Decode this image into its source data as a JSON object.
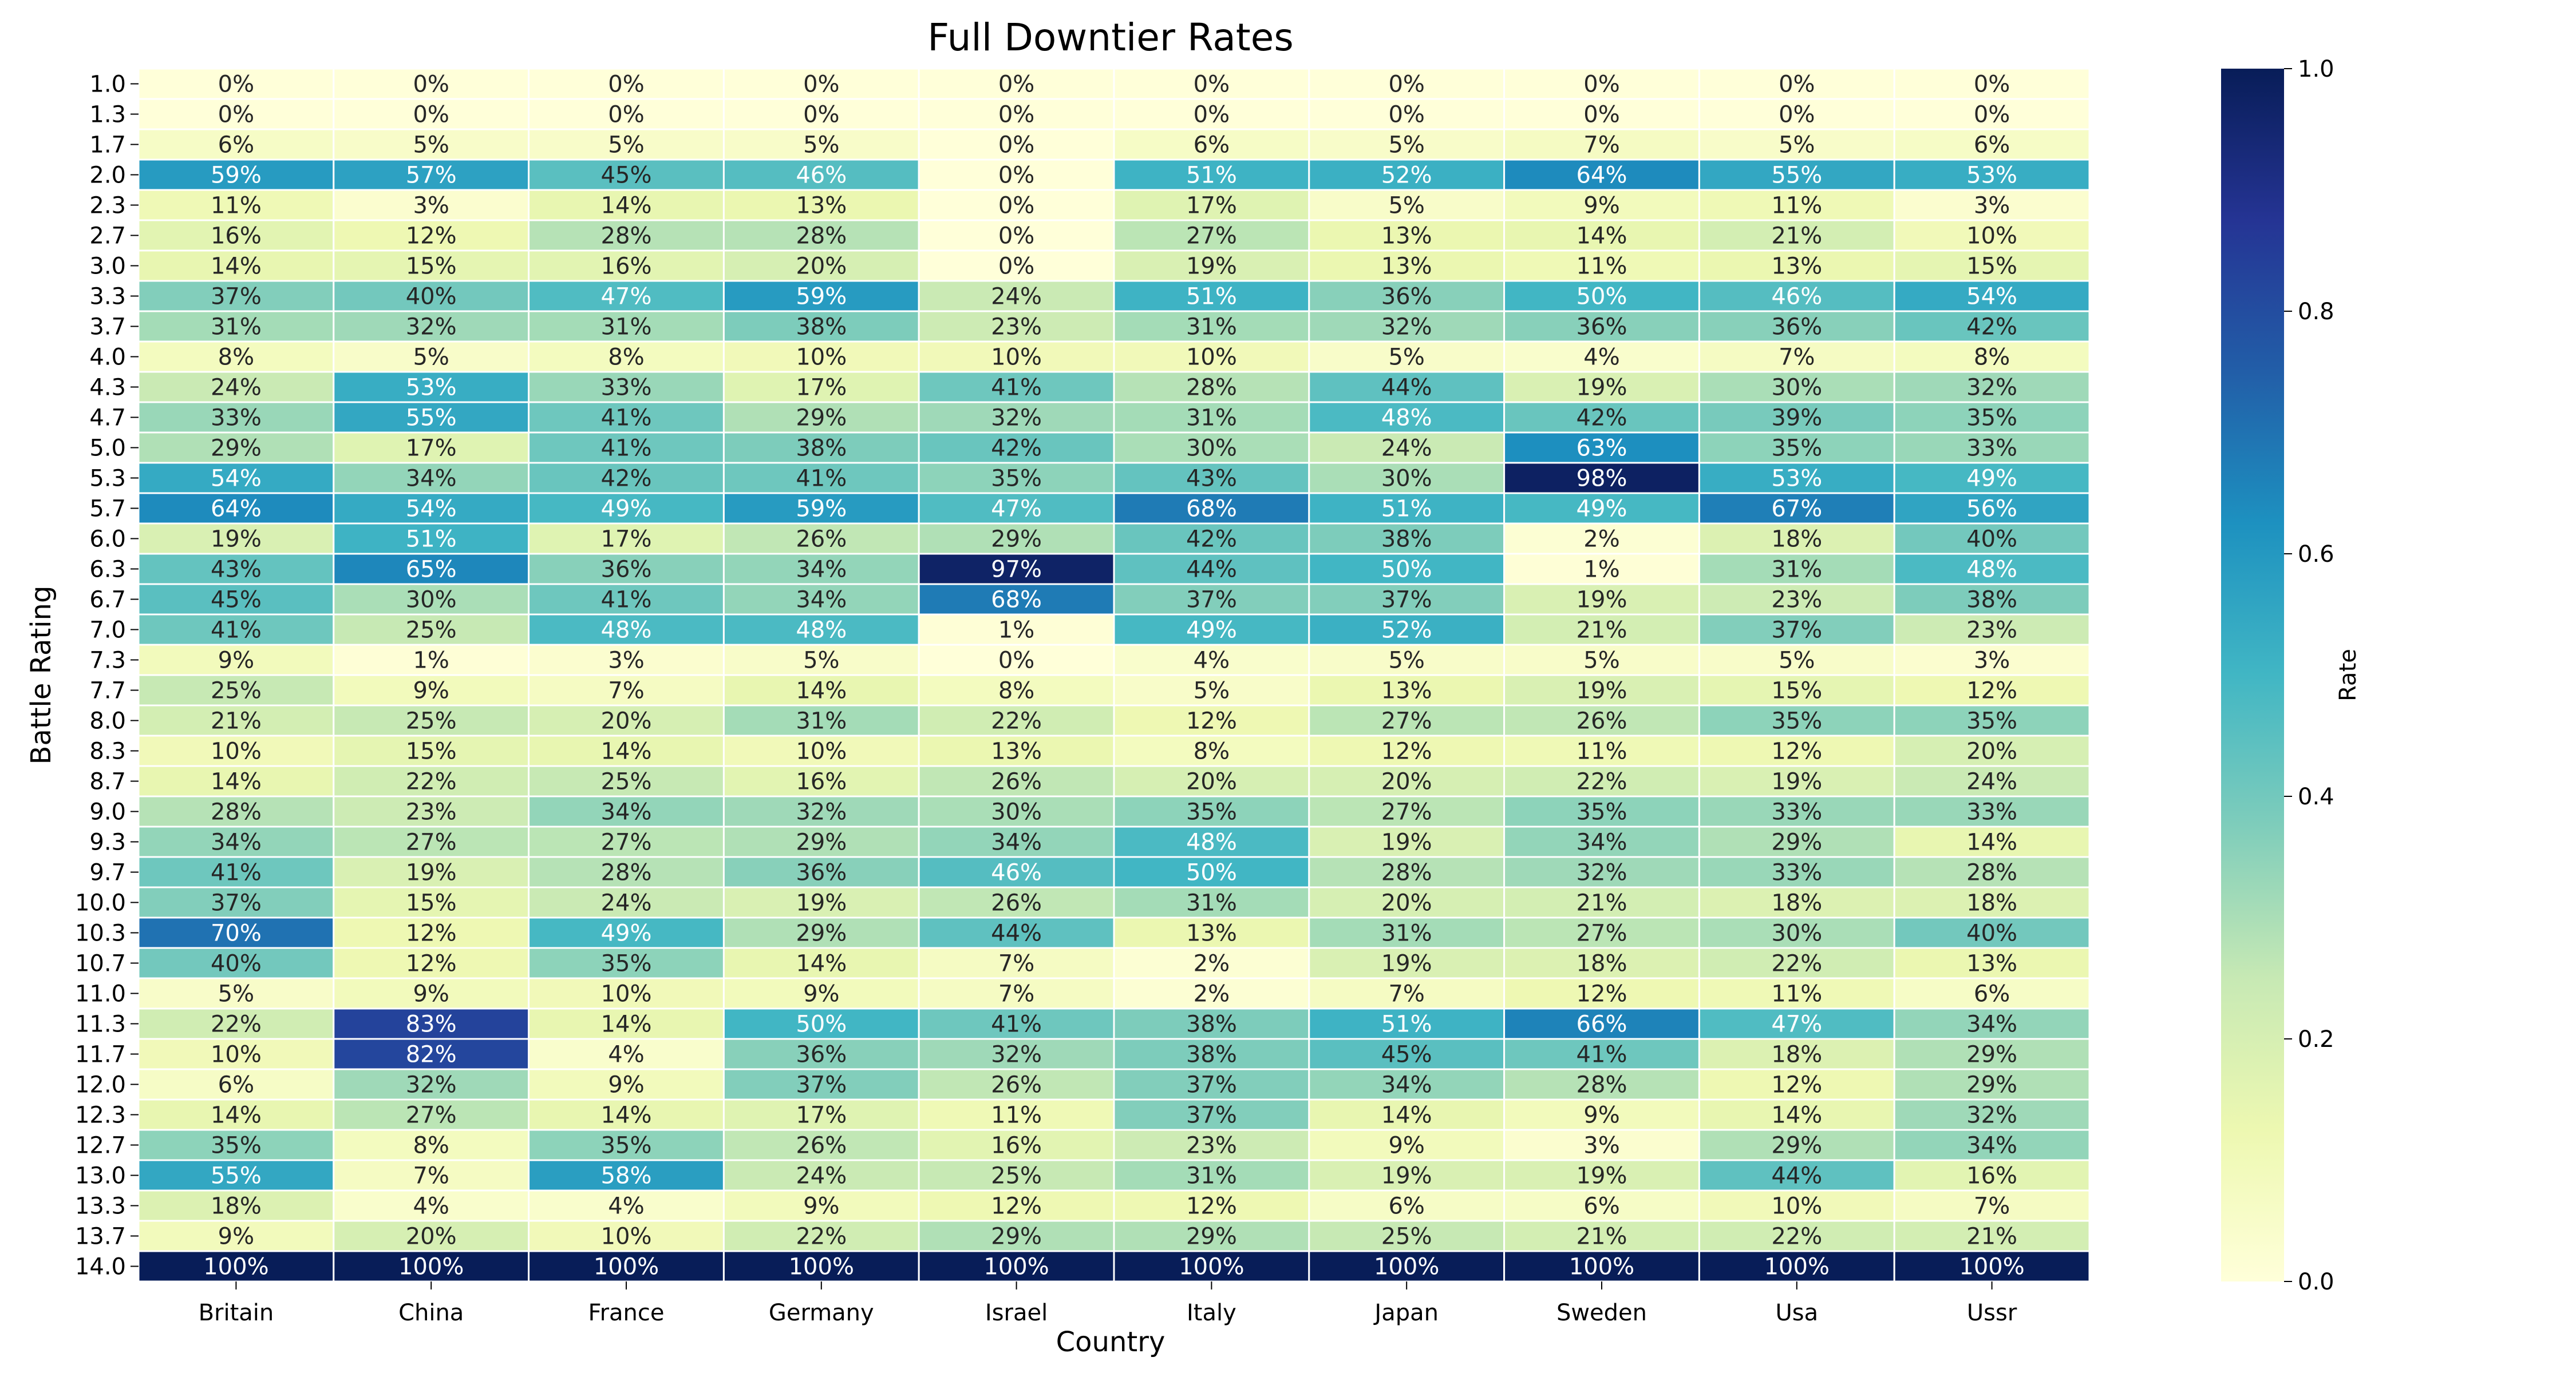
{
  "chart_data": {
    "type": "heatmap",
    "title": "Full Downtier Rates",
    "xlabel": "Country",
    "ylabel": "Battle Rating",
    "colorbar_label": "Rate",
    "colorbar_ticks": [
      "0.0",
      "0.2",
      "0.4",
      "0.6",
      "0.8",
      "1.0"
    ],
    "colorbar_range": [
      0,
      1
    ],
    "colormap": [
      "#ffffd9",
      "#edf8b1",
      "#c7e9b4",
      "#7fcdbb",
      "#41b6c4",
      "#1d91c0",
      "#225ea8",
      "#253494",
      "#081d58"
    ],
    "grid_line_color": "#ffffff",
    "x_categories": [
      "Britain",
      "China",
      "France",
      "Germany",
      "Israel",
      "Italy",
      "Japan",
      "Sweden",
      "Usa",
      "Ussr"
    ],
    "y_categories": [
      "1.0",
      "1.3",
      "1.7",
      "2.0",
      "2.3",
      "2.7",
      "3.0",
      "3.3",
      "3.7",
      "4.0",
      "4.3",
      "4.7",
      "5.0",
      "5.3",
      "5.7",
      "6.0",
      "6.3",
      "6.7",
      "7.0",
      "7.3",
      "7.7",
      "8.0",
      "8.3",
      "8.7",
      "9.0",
      "9.3",
      "9.7",
      "10.0",
      "10.3",
      "10.7",
      "11.0",
      "11.3",
      "11.7",
      "12.0",
      "12.3",
      "12.7",
      "13.0",
      "13.3",
      "13.7",
      "14.0"
    ],
    "values": [
      [
        0,
        0,
        0,
        0,
        0,
        0,
        0,
        0,
        0,
        0
      ],
      [
        0,
        0,
        0,
        0,
        0,
        0,
        0,
        0,
        0,
        0
      ],
      [
        6,
        5,
        5,
        5,
        0,
        6,
        5,
        7,
        5,
        6
      ],
      [
        59,
        57,
        45,
        46,
        0,
        51,
        52,
        64,
        55,
        53
      ],
      [
        11,
        3,
        14,
        13,
        0,
        17,
        5,
        9,
        11,
        3
      ],
      [
        16,
        12,
        28,
        28,
        0,
        27,
        13,
        14,
        21,
        10
      ],
      [
        14,
        15,
        16,
        20,
        0,
        19,
        13,
        11,
        13,
        15
      ],
      [
        37,
        40,
        47,
        59,
        24,
        51,
        36,
        50,
        46,
        54
      ],
      [
        31,
        32,
        31,
        38,
        23,
        31,
        32,
        36,
        36,
        42
      ],
      [
        8,
        5,
        8,
        10,
        10,
        10,
        5,
        4,
        7,
        8
      ],
      [
        24,
        53,
        33,
        17,
        41,
        28,
        44,
        19,
        30,
        32
      ],
      [
        33,
        55,
        41,
        29,
        32,
        31,
        48,
        42,
        39,
        35
      ],
      [
        29,
        17,
        41,
        38,
        42,
        30,
        24,
        63,
        35,
        33
      ],
      [
        54,
        34,
        42,
        41,
        35,
        43,
        30,
        98,
        53,
        49
      ],
      [
        64,
        54,
        49,
        59,
        47,
        68,
        51,
        49,
        67,
        56
      ],
      [
        19,
        51,
        17,
        26,
        29,
        42,
        38,
        2,
        18,
        40
      ],
      [
        43,
        65,
        36,
        34,
        97,
        44,
        50,
        1,
        31,
        48
      ],
      [
        45,
        30,
        41,
        34,
        68,
        37,
        37,
        19,
        23,
        38
      ],
      [
        41,
        25,
        48,
        48,
        1,
        49,
        52,
        21,
        37,
        23
      ],
      [
        9,
        1,
        3,
        5,
        0,
        4,
        5,
        5,
        5,
        3
      ],
      [
        25,
        9,
        7,
        14,
        8,
        5,
        13,
        19,
        15,
        12
      ],
      [
        21,
        25,
        20,
        31,
        22,
        12,
        27,
        26,
        35,
        35
      ],
      [
        10,
        15,
        14,
        10,
        13,
        8,
        12,
        11,
        12,
        20
      ],
      [
        14,
        22,
        25,
        16,
        26,
        20,
        20,
        22,
        19,
        24
      ],
      [
        28,
        23,
        34,
        32,
        30,
        35,
        27,
        35,
        33,
        33
      ],
      [
        34,
        27,
        27,
        29,
        34,
        48,
        19,
        34,
        29,
        14
      ],
      [
        41,
        19,
        28,
        36,
        46,
        50,
        28,
        32,
        33,
        28
      ],
      [
        37,
        15,
        24,
        19,
        26,
        31,
        20,
        21,
        18,
        18
      ],
      [
        70,
        12,
        49,
        29,
        44,
        13,
        31,
        27,
        30,
        40
      ],
      [
        40,
        12,
        35,
        14,
        7,
        2,
        19,
        18,
        22,
        13
      ],
      [
        5,
        9,
        10,
        9,
        7,
        2,
        7,
        12,
        11,
        6
      ],
      [
        22,
        83,
        14,
        50,
        41,
        38,
        51,
        66,
        47,
        34
      ],
      [
        10,
        82,
        4,
        36,
        32,
        38,
        45,
        41,
        18,
        29
      ],
      [
        6,
        32,
        9,
        37,
        26,
        37,
        34,
        28,
        12,
        29
      ],
      [
        14,
        27,
        14,
        17,
        11,
        37,
        14,
        9,
        14,
        32
      ],
      [
        35,
        8,
        35,
        26,
        16,
        23,
        9,
        3,
        29,
        34
      ],
      [
        55,
        7,
        58,
        24,
        25,
        31,
        19,
        19,
        44,
        16
      ],
      [
        18,
        4,
        4,
        9,
        12,
        12,
        6,
        6,
        10,
        7
      ],
      [
        9,
        20,
        10,
        22,
        29,
        29,
        25,
        21,
        22,
        21
      ],
      [
        100,
        100,
        100,
        100,
        100,
        100,
        100,
        100,
        100,
        100
      ]
    ]
  }
}
